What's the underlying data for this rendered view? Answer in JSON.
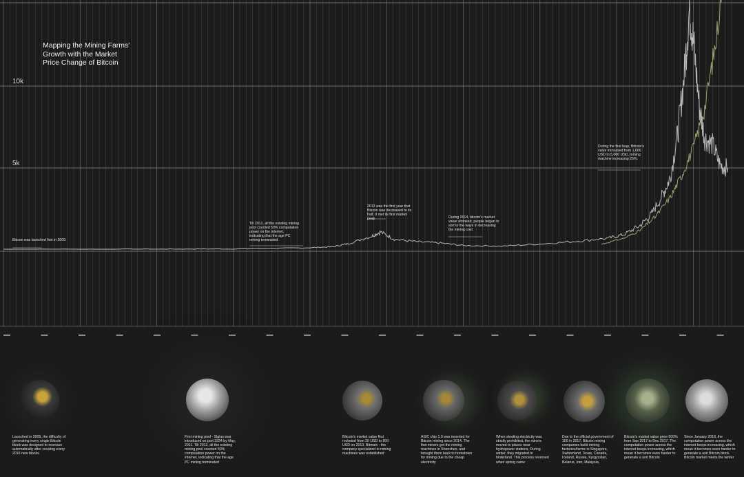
{
  "title": "Mapping the Mining Farms' Growth with the Market Price Change of Bitcoin",
  "colors": {
    "background": "#1b1b1b",
    "grid": "#8a8a8a",
    "price": "#b9b9b9",
    "hashrate": "#a3a374",
    "text": "#e2e2e2"
  },
  "chart_data": {
    "type": "line",
    "title": "Mapping the Mining Farms' Growth with the Market Price Change of Bitcoin",
    "xlabel": "",
    "ylabel": "",
    "y_tick_labels": [
      "10k",
      "5k"
    ],
    "grid": true,
    "x_range": [
      2009.0,
      2018.5
    ],
    "ylim": [
      0,
      20000
    ],
    "series": [
      {
        "x": [
          2009.0,
          2010.0,
          2011.0,
          2011.5,
          2012.0,
          2012.5,
          2013.0,
          2013.3,
          2013.5,
          2013.8,
          2013.92,
          2014.1,
          2014.4,
          2014.7,
          2015.0,
          2015.5,
          2016.0,
          2016.5,
          2016.9,
          2017.1,
          2017.3,
          2017.45,
          2017.6,
          2017.7,
          2017.8,
          2017.88,
          2017.95,
          2018.0,
          2018.08,
          2018.15,
          2018.25,
          2018.35,
          2018.45
        ],
        "y": [
          0,
          0,
          0,
          15,
          20,
          60,
          120,
          200,
          450,
          1050,
          1400,
          800,
          600,
          500,
          300,
          250,
          420,
          650,
          900,
          1200,
          1900,
          2800,
          4400,
          5800,
          9500,
          14000,
          19500,
          17000,
          11500,
          9000,
          8500,
          6800,
          6600
        ]
      },
      {
        "x": [
          2016.8,
          2017.1,
          2017.3,
          2017.5,
          2017.7,
          2017.85,
          2018.0,
          2018.15,
          2018.3,
          2018.45
        ],
        "y": [
          400,
          900,
          1500,
          2600,
          4200,
          6000,
          8200,
          11500,
          17000,
          26000
        ]
      }
    ]
  },
  "annotations": [
    {
      "text": "Bitcoin was launched first in 2009."
    },
    {
      "text": "Till 2012, all the existing mining pool counted 50% computation power on the internet, indicating that the age PC mining terminated"
    },
    {
      "text": "2013 was the first year that Bitcoin was decreased to its half. It met its first market peak"
    },
    {
      "text": "During 2014, bitcoin's market value shrinked, people began to sort to the ways in decreasing the mining cost"
    },
    {
      "text": "During the first leap, Bitcoin's value increased from 1,000 USD to 5,000 USD, mining machine increasing 25%."
    }
  ],
  "captions": [
    {
      "text": "Launched in 2009, the difficulty of generating every single Bitcoin block was designed to increase automatically after creating every 2016 new blocks"
    },
    {
      "text": "First mining pool - Slgius was introduced on port 3334 by May, 2011. Till 2012, all the existing mining pool counted 50% computation power on the internet, indicating that the age PC mining terminated"
    },
    {
      "text": "Bitcoin's market value first rocketed from 20 USD to 900 USD on 2013. Bitmain - the company specialized in mining machines was established"
    },
    {
      "text": "ASIC chip 1.0 was invented for Bitcoin mining since 2014. The first miners got the mining machines in Shenzhen, and brought them back to hometown for mining due to the cheap electricity"
    },
    {
      "text": "When stealing electricity was strictly prohibited, the miners moved to places near hydropower stations. During winter, they migrated to hinterland. This process reversed when spring came"
    },
    {
      "text": "Due to the official government of 100 in 2017, Bitcoin mining companies build mining factories/farms in Singapore, Switzerland, Texas, Canada, Iceland, Russia, Kyrgyzstan, Belarus, Iran, Malaysia,"
    },
    {
      "text": "Bitcoin's market value grew 500% from Sep 2017 to Dec 2017. The computation power across the internet keeps increasing, which mean it becomes even harder to generate a unit Bitcoin"
    },
    {
      "text": "Since January 2018, the computation power across the internet keeps increasing, which mean it becomes even harder to generate a unit Bitcoin block. Bitcoin market meets the winter"
    }
  ]
}
